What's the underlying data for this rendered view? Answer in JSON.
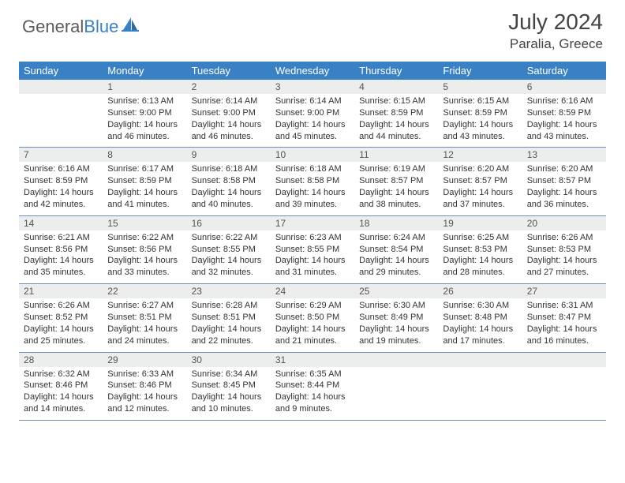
{
  "brand": {
    "general": "General",
    "blue": "Blue"
  },
  "title": {
    "month": "July 2024",
    "location": "Paralia, Greece"
  },
  "colors": {
    "accent": "#3a80c4",
    "header_text": "#ffffff",
    "daynum_bg": "#eceded",
    "row_divider": "#6f8fb1",
    "body_text": "#333333",
    "title_text": "#444444",
    "logo_gray": "#5b5b5b"
  },
  "days_of_week": [
    "Sunday",
    "Monday",
    "Tuesday",
    "Wednesday",
    "Thursday",
    "Friday",
    "Saturday"
  ],
  "weeks": [
    {
      "nums": [
        "",
        "1",
        "2",
        "3",
        "4",
        "5",
        "6"
      ],
      "rise": [
        "",
        "Sunrise: 6:13 AM",
        "Sunrise: 6:14 AM",
        "Sunrise: 6:14 AM",
        "Sunrise: 6:15 AM",
        "Sunrise: 6:15 AM",
        "Sunrise: 6:16 AM"
      ],
      "set": [
        "",
        "Sunset: 9:00 PM",
        "Sunset: 9:00 PM",
        "Sunset: 9:00 PM",
        "Sunset: 8:59 PM",
        "Sunset: 8:59 PM",
        "Sunset: 8:59 PM"
      ],
      "light": [
        "",
        "Daylight: 14 hours and 46 minutes.",
        "Daylight: 14 hours and 46 minutes.",
        "Daylight: 14 hours and 45 minutes.",
        "Daylight: 14 hours and 44 minutes.",
        "Daylight: 14 hours and 43 minutes.",
        "Daylight: 14 hours and 43 minutes."
      ]
    },
    {
      "nums": [
        "7",
        "8",
        "9",
        "10",
        "11",
        "12",
        "13"
      ],
      "rise": [
        "Sunrise: 6:16 AM",
        "Sunrise: 6:17 AM",
        "Sunrise: 6:18 AM",
        "Sunrise: 6:18 AM",
        "Sunrise: 6:19 AM",
        "Sunrise: 6:20 AM",
        "Sunrise: 6:20 AM"
      ],
      "set": [
        "Sunset: 8:59 PM",
        "Sunset: 8:59 PM",
        "Sunset: 8:58 PM",
        "Sunset: 8:58 PM",
        "Sunset: 8:57 PM",
        "Sunset: 8:57 PM",
        "Sunset: 8:57 PM"
      ],
      "light": [
        "Daylight: 14 hours and 42 minutes.",
        "Daylight: 14 hours and 41 minutes.",
        "Daylight: 14 hours and 40 minutes.",
        "Daylight: 14 hours and 39 minutes.",
        "Daylight: 14 hours and 38 minutes.",
        "Daylight: 14 hours and 37 minutes.",
        "Daylight: 14 hours and 36 minutes."
      ]
    },
    {
      "nums": [
        "14",
        "15",
        "16",
        "17",
        "18",
        "19",
        "20"
      ],
      "rise": [
        "Sunrise: 6:21 AM",
        "Sunrise: 6:22 AM",
        "Sunrise: 6:22 AM",
        "Sunrise: 6:23 AM",
        "Sunrise: 6:24 AM",
        "Sunrise: 6:25 AM",
        "Sunrise: 6:26 AM"
      ],
      "set": [
        "Sunset: 8:56 PM",
        "Sunset: 8:56 PM",
        "Sunset: 8:55 PM",
        "Sunset: 8:55 PM",
        "Sunset: 8:54 PM",
        "Sunset: 8:53 PM",
        "Sunset: 8:53 PM"
      ],
      "light": [
        "Daylight: 14 hours and 35 minutes.",
        "Daylight: 14 hours and 33 minutes.",
        "Daylight: 14 hours and 32 minutes.",
        "Daylight: 14 hours and 31 minutes.",
        "Daylight: 14 hours and 29 minutes.",
        "Daylight: 14 hours and 28 minutes.",
        "Daylight: 14 hours and 27 minutes."
      ]
    },
    {
      "nums": [
        "21",
        "22",
        "23",
        "24",
        "25",
        "26",
        "27"
      ],
      "rise": [
        "Sunrise: 6:26 AM",
        "Sunrise: 6:27 AM",
        "Sunrise: 6:28 AM",
        "Sunrise: 6:29 AM",
        "Sunrise: 6:30 AM",
        "Sunrise: 6:30 AM",
        "Sunrise: 6:31 AM"
      ],
      "set": [
        "Sunset: 8:52 PM",
        "Sunset: 8:51 PM",
        "Sunset: 8:51 PM",
        "Sunset: 8:50 PM",
        "Sunset: 8:49 PM",
        "Sunset: 8:48 PM",
        "Sunset: 8:47 PM"
      ],
      "light": [
        "Daylight: 14 hours and 25 minutes.",
        "Daylight: 14 hours and 24 minutes.",
        "Daylight: 14 hours and 22 minutes.",
        "Daylight: 14 hours and 21 minutes.",
        "Daylight: 14 hours and 19 minutes.",
        "Daylight: 14 hours and 17 minutes.",
        "Daylight: 14 hours and 16 minutes."
      ]
    },
    {
      "nums": [
        "28",
        "29",
        "30",
        "31",
        "",
        "",
        ""
      ],
      "rise": [
        "Sunrise: 6:32 AM",
        "Sunrise: 6:33 AM",
        "Sunrise: 6:34 AM",
        "Sunrise: 6:35 AM",
        "",
        "",
        ""
      ],
      "set": [
        "Sunset: 8:46 PM",
        "Sunset: 8:46 PM",
        "Sunset: 8:45 PM",
        "Sunset: 8:44 PM",
        "",
        "",
        ""
      ],
      "light": [
        "Daylight: 14 hours and 14 minutes.",
        "Daylight: 14 hours and 12 minutes.",
        "Daylight: 14 hours and 10 minutes.",
        "Daylight: 14 hours and 9 minutes.",
        "",
        "",
        ""
      ]
    }
  ]
}
